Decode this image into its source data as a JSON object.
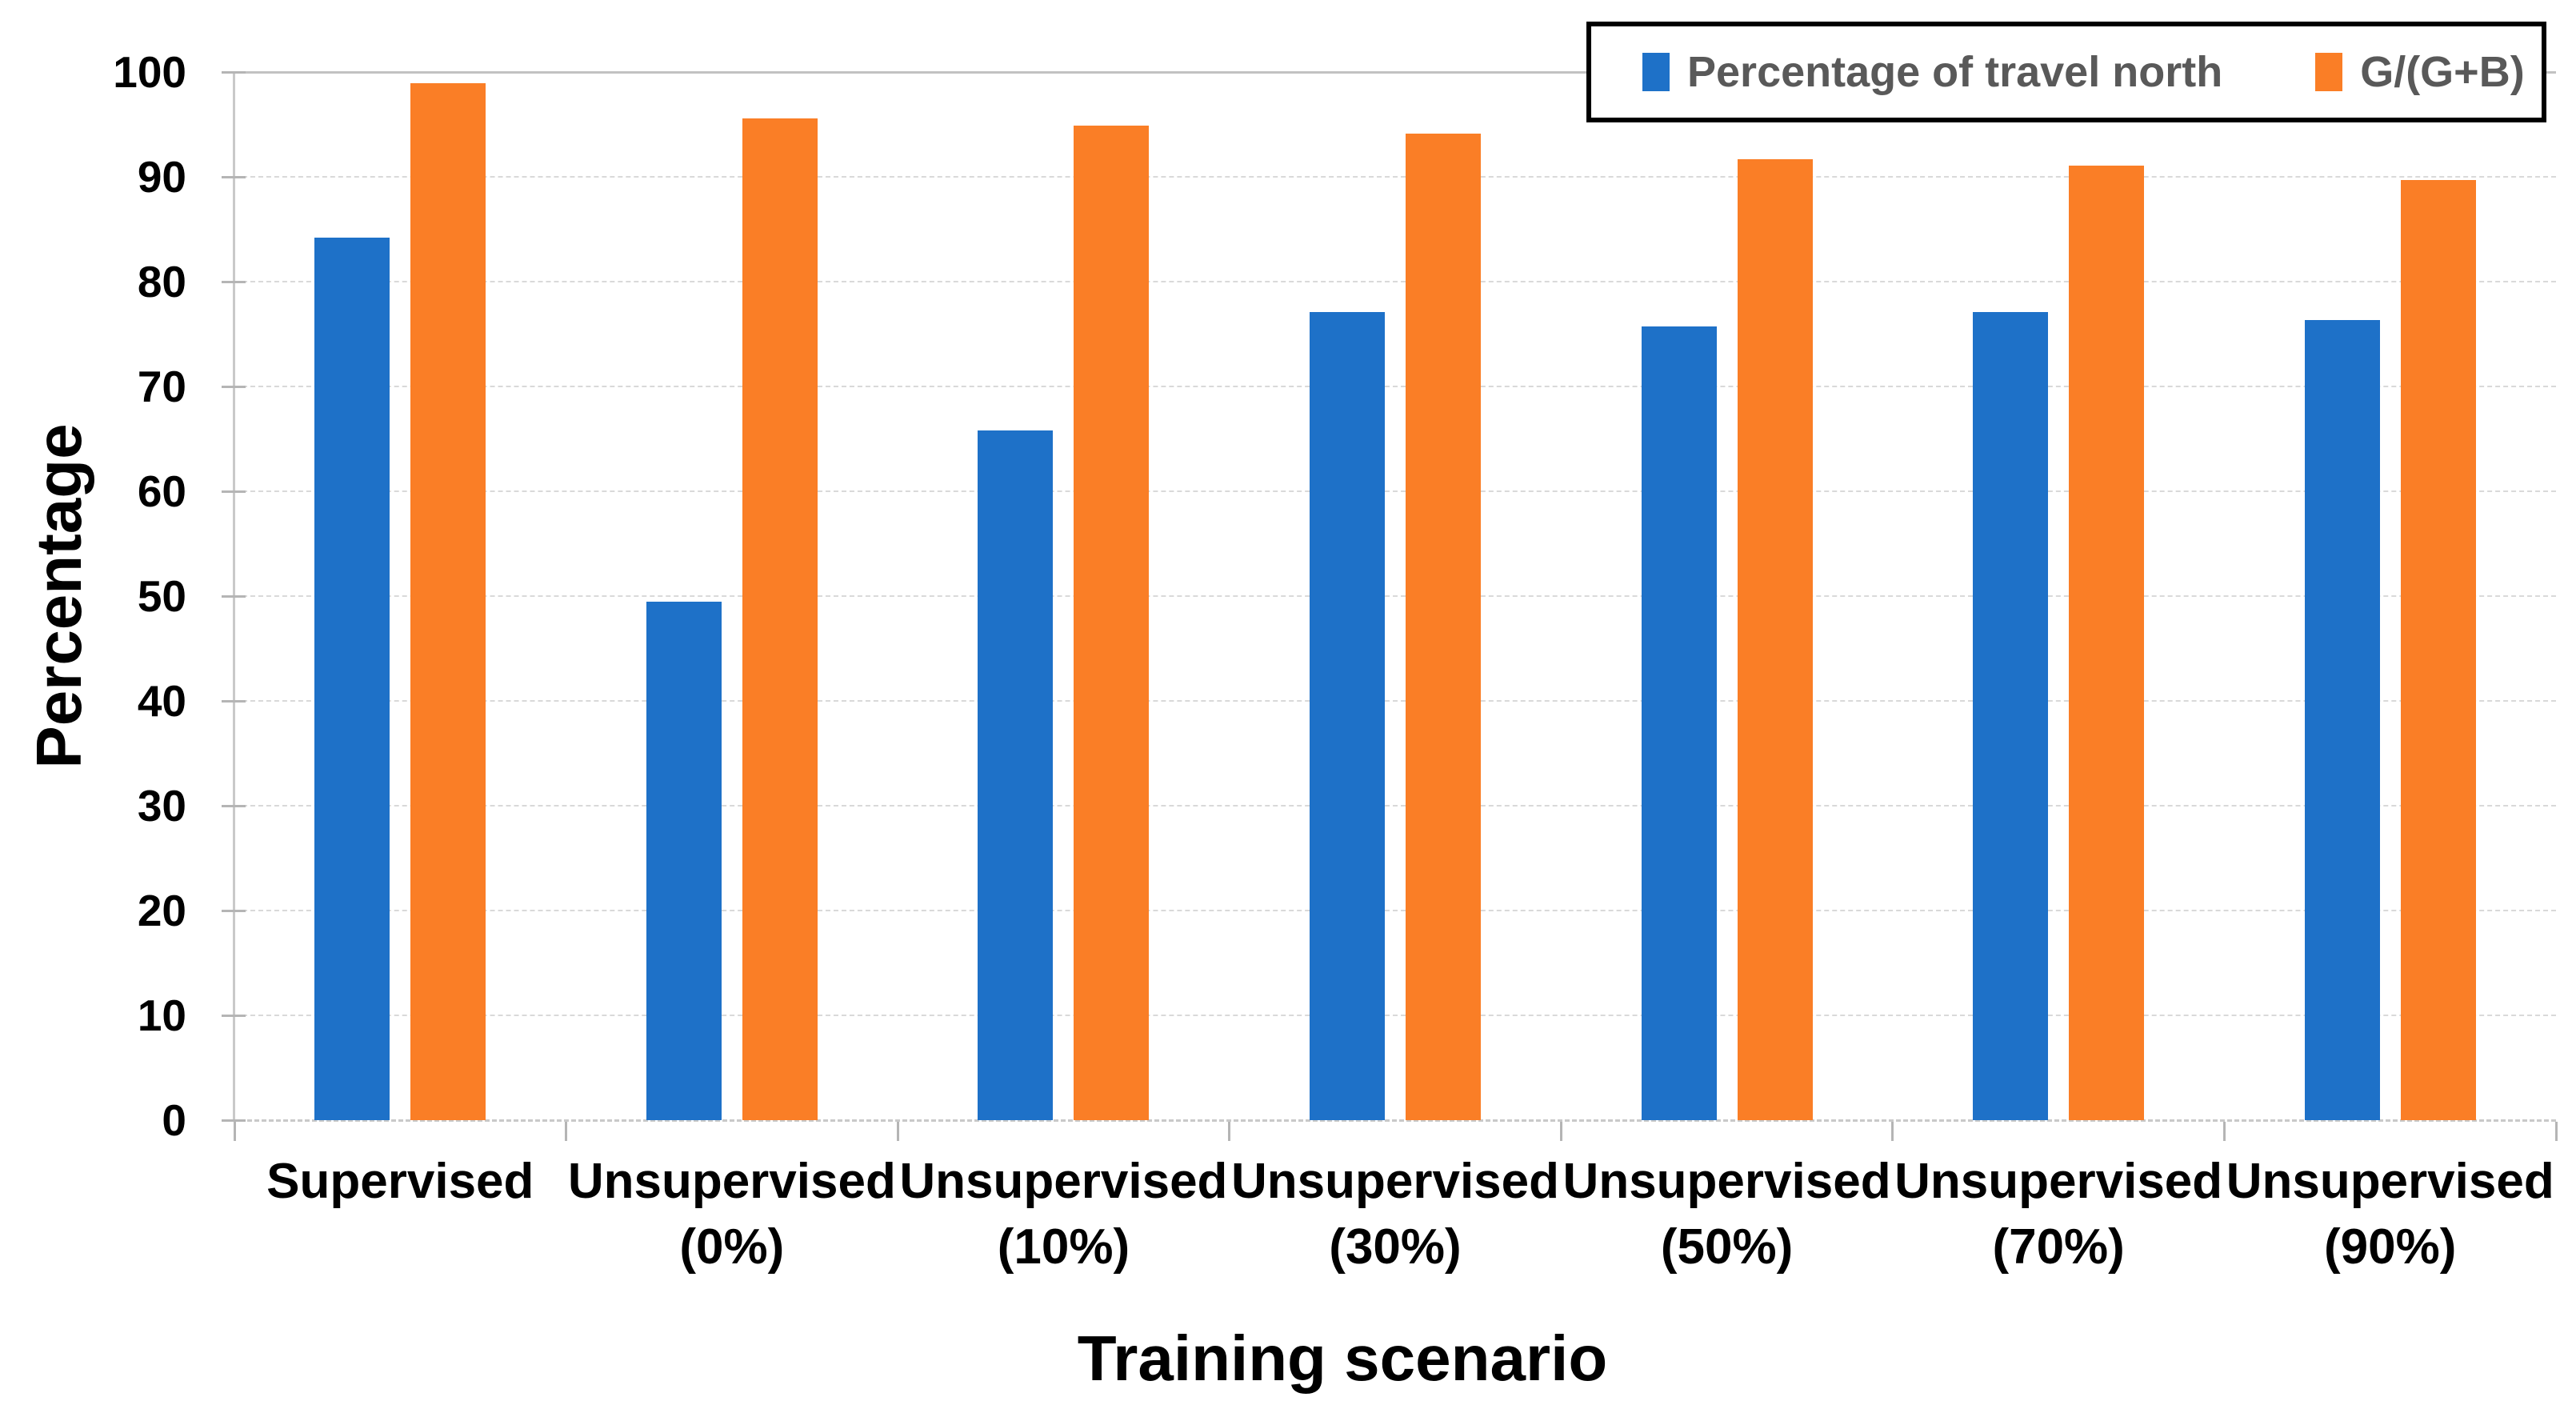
{
  "chart_data": {
    "type": "bar",
    "title": "",
    "xlabel": "Training scenario",
    "ylabel": "Percentage",
    "categories": [
      "Supervised",
      "Unsupervised (0%)",
      "Unsupervised (10%)",
      "Unsupervised (30%)",
      "Unsupervised (50%)",
      "Unsupervised (70%)",
      "Unsupervised (90%)"
    ],
    "series": [
      {
        "name": "Percentage of travel north",
        "color": "#1E71C8",
        "values": [
          84.2,
          49.5,
          65.8,
          77.1,
          75.7,
          77.1,
          76.3
        ]
      },
      {
        "name": "G/(G+B)",
        "color": "#FA7E26",
        "values": [
          98.9,
          95.6,
          94.9,
          94.1,
          91.7,
          91.1,
          89.7
        ]
      }
    ],
    "ylim": [
      0,
      100
    ],
    "yticks": [
      0,
      10,
      20,
      30,
      40,
      50,
      60,
      70,
      80,
      90,
      100
    ],
    "grid": "horizontal-dashed",
    "legend_position": "top-right-inside-border"
  },
  "colors": {
    "background": "#FFFFFF",
    "grid": "#D9D9D9",
    "grid_top": "#C2C2C2",
    "axis": "#C9C9C9",
    "tick": "#B5B5B5",
    "text": "#000000",
    "legend_text": "#595959",
    "legend_border": "#000000"
  }
}
